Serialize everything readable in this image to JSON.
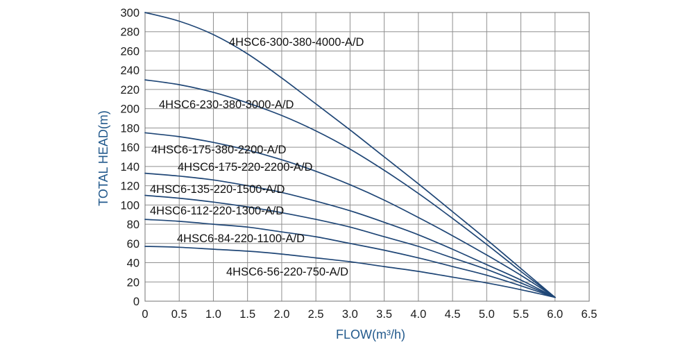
{
  "chart_data": {
    "type": "line",
    "xlabel": "FLOW(m³/h)",
    "ylabel": "TOTAL HEAD(m)",
    "xlim": [
      0,
      6.5
    ],
    "ylim": [
      0,
      300
    ],
    "grid": true,
    "x_ticks": [
      "0",
      "0.5",
      "1.0",
      "1.5",
      "2.0",
      "2.5",
      "3.0",
      "3.5",
      "4.0",
      "4.5",
      "5.0",
      "5.5",
      "6.0",
      "6.5"
    ],
    "y_ticks": [
      "0",
      "20",
      "40",
      "60",
      "80",
      "100",
      "120",
      "140",
      "160",
      "180",
      "200",
      "220",
      "240",
      "260",
      "280",
      "300"
    ],
    "x": [
      0,
      0.5,
      1.0,
      1.5,
      2.0,
      2.5,
      3.0,
      3.5,
      4.0,
      4.5,
      5.0,
      5.5,
      6.0
    ],
    "series": [
      {
        "labels": [
          "4HSC6-300-380-4000-A/D"
        ],
        "values": [
          300,
          291,
          277,
          257,
          232,
          205,
          178,
          150,
          122,
          93,
          64,
          34,
          4
        ]
      },
      {
        "labels": [
          "4HSC6-230-380-3000-A/D"
        ],
        "values": [
          230,
          225,
          217,
          206,
          193,
          177,
          158,
          136,
          112,
          86,
          59,
          31,
          4
        ]
      },
      {
        "labels": [
          "4HSC6-175-380-2200-A/D",
          "4HSC6-175-220-2200-A/D"
        ],
        "values": [
          175,
          171,
          165,
          157,
          147,
          135,
          121,
          105,
          87,
          68,
          48,
          27,
          4
        ]
      },
      {
        "labels": [
          "4HSC6-135-220-1500-A/D"
        ],
        "values": [
          133,
          130,
          126,
          120,
          113,
          104,
          94,
          82,
          69,
          54,
          38,
          22,
          4
        ]
      },
      {
        "labels": [
          "4HSC6-112-220-1300-A/D"
        ],
        "values": [
          110,
          107,
          103,
          98,
          92,
          85,
          77,
          67,
          57,
          45,
          33,
          19,
          4
        ]
      },
      {
        "labels": [
          "4HSC6-84-220-1100-A/D"
        ],
        "values": [
          85,
          83,
          80,
          77,
          72,
          67,
          60,
          53,
          45,
          36,
          27,
          16,
          4
        ]
      },
      {
        "labels": [
          "4HSC6-56-220-750-A/D"
        ],
        "values": [
          57,
          56,
          54,
          52,
          49,
          45,
          41,
          36,
          31,
          25,
          19,
          12,
          4
        ]
      }
    ]
  },
  "colors": {
    "curve": "#1f4676",
    "axis_label": "#22598c",
    "grid": "#8f8f8f",
    "frame": "#737373",
    "tick_text": "#1b1b1b",
    "curve_label": "#111111"
  }
}
